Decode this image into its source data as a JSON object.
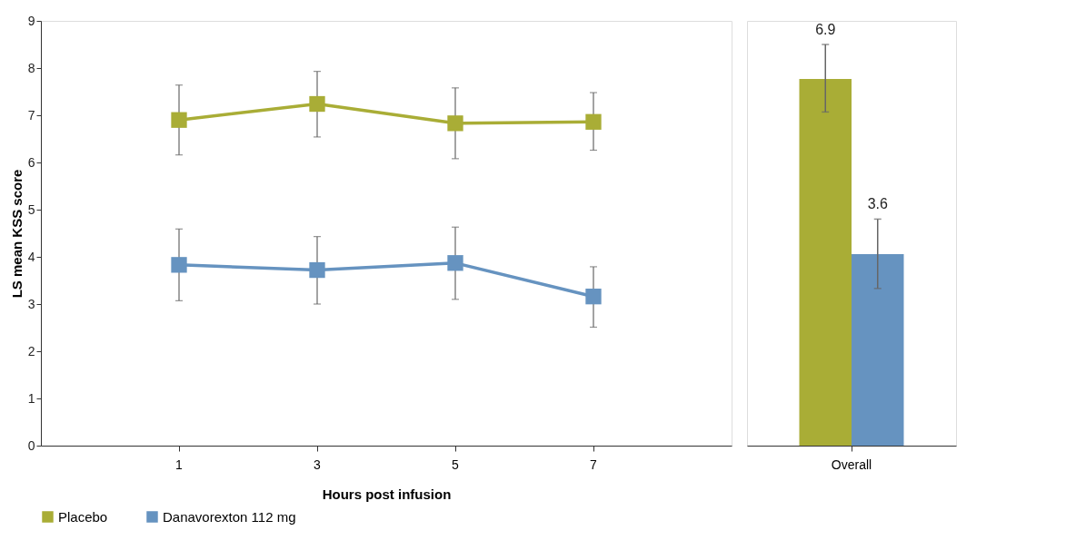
{
  "chart_data": [
    {
      "type": "line",
      "categories": [
        "1",
        "3",
        "5",
        "7"
      ],
      "xlabel": "Hours post infusion",
      "ylabel": "LS mean KSS score",
      "ylim": [
        0,
        9
      ],
      "yticks": [
        0,
        1,
        2,
        3,
        4,
        5,
        6,
        7,
        8,
        9
      ],
      "grid": false,
      "legend": "bottom",
      "marker": "square",
      "line_style": "solid",
      "series": [
        {
          "name": "Placebo",
          "color": "#a9ad36",
          "values": [
            6.9,
            7.24,
            6.83,
            6.86
          ],
          "errors": [
            [
              6.16,
              7.64
            ],
            [
              6.54,
              7.93
            ],
            [
              6.08,
              7.58
            ],
            [
              6.26,
              7.48
            ]
          ]
        },
        {
          "name": "Danavorexton 112 mg",
          "color": "#6693c0",
          "values": [
            3.83,
            3.72,
            3.87,
            3.16
          ],
          "errors": [
            [
              3.07,
              4.59
            ],
            [
              3.0,
              4.43
            ],
            [
              3.1,
              4.63
            ],
            [
              2.51,
              3.79
            ]
          ]
        }
      ]
    },
    {
      "type": "bar",
      "categories": [
        "Overall"
      ],
      "ylim": [
        0,
        9
      ],
      "tick_labels": "x",
      "grid": false,
      "legend": false,
      "annotations": [
        "6.9",
        "3.6"
      ],
      "series": [
        {
          "color": "#a9ad36",
          "values": [
            7.77
          ],
          "errors": [
            [
              7.07,
              8.5
            ]
          ]
        },
        {
          "color": "#6693c0",
          "values": [
            4.06
          ],
          "errors": [
            [
              3.33,
              4.8
            ]
          ]
        }
      ]
    }
  ]
}
